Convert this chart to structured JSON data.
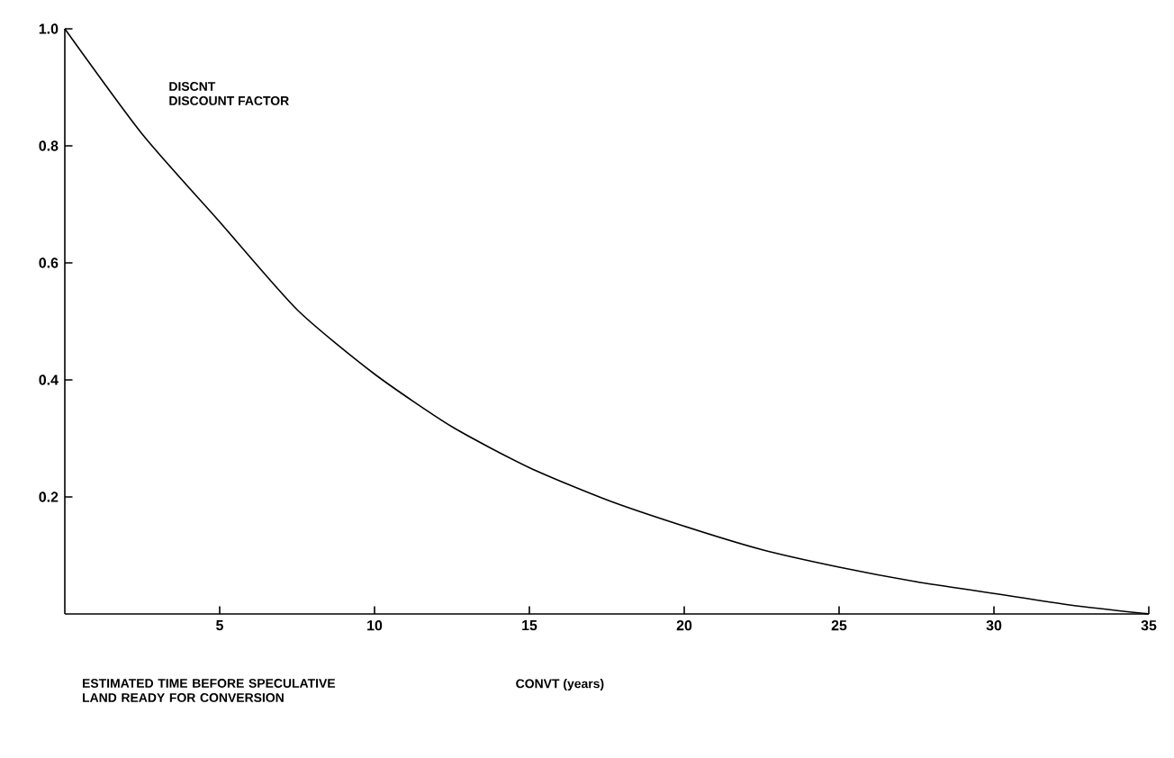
{
  "chart_data": {
    "type": "line",
    "ylabel": "DISCNT",
    "xlabel": "CONVT (years)",
    "annotations": [
      "DISCOUNT FACTOR",
      "ESTIMATED TIME BEFORE SPECULATIVE LAND READY FOR CONVERSION"
    ],
    "x": [
      0,
      2.5,
      5,
      7.5,
      10,
      12.5,
      15,
      17.5,
      20,
      22.5,
      25,
      27.5,
      30,
      32.5,
      35
    ],
    "series": [
      {
        "color": "#000000",
        "values": [
          1.0,
          0.82,
          0.67,
          0.52,
          0.41,
          0.32,
          0.25,
          0.195,
          0.15,
          0.11,
          0.08,
          0.055,
          0.035,
          0.015,
          0.0
        ]
      }
    ],
    "xlim": [
      0,
      35
    ],
    "ylim": [
      0,
      1
    ],
    "xticks": [
      5,
      10,
      15,
      20,
      25,
      30,
      35
    ],
    "yticks": [
      0.2,
      0.4,
      0.6,
      0.8,
      {
        "value": 1,
        "label": "1.0"
      }
    ],
    "grid": false,
    "marker": "none",
    "line_style": "solid"
  }
}
